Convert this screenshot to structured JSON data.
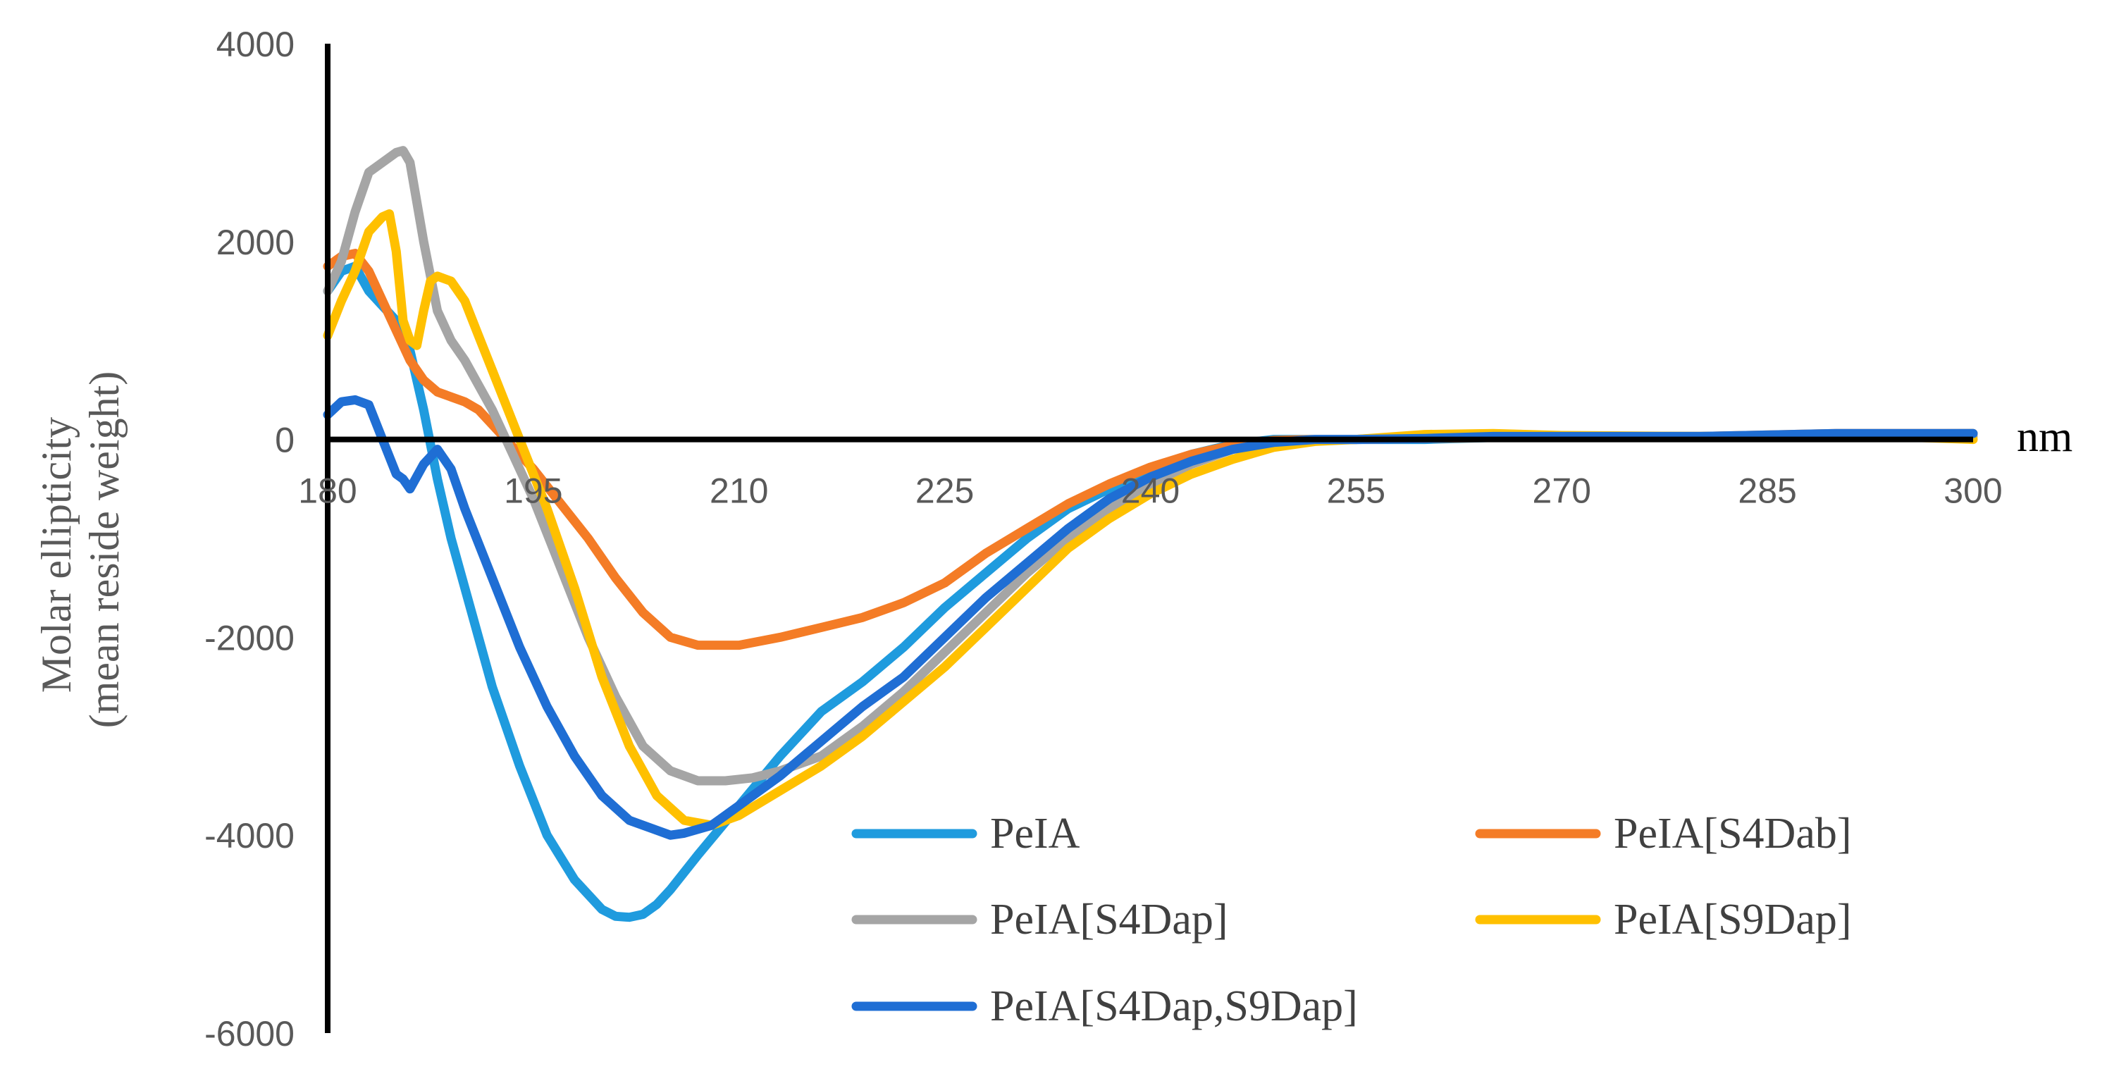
{
  "chart_data": {
    "type": "line",
    "title": "",
    "xlabel": "nm",
    "ylabel_lines": [
      "Molar ellipticity",
      "(mean reside weight)"
    ],
    "xlim": [
      180,
      300
    ],
    "ylim": [
      -6000,
      4000
    ],
    "x_ticks": [
      180,
      195,
      210,
      225,
      240,
      255,
      270,
      285,
      300
    ],
    "y_ticks": [
      4000,
      2000,
      0,
      -2000,
      -4000,
      -6000
    ],
    "grid": false,
    "legend": "bottom-right",
    "series": [
      {
        "name": "PeIA",
        "color": "#1f9bde",
        "points": [
          [
            180,
            1500
          ],
          [
            181,
            1700
          ],
          [
            182,
            1750
          ],
          [
            183,
            1500
          ],
          [
            184,
            1350
          ],
          [
            185,
            1200
          ],
          [
            186,
            900
          ],
          [
            187,
            300
          ],
          [
            188,
            -400
          ],
          [
            189,
            -1000
          ],
          [
            190,
            -1500
          ],
          [
            192,
            -2500
          ],
          [
            194,
            -3300
          ],
          [
            196,
            -4000
          ],
          [
            198,
            -4450
          ],
          [
            200,
            -4750
          ],
          [
            201,
            -4820
          ],
          [
            202,
            -4830
          ],
          [
            203,
            -4800
          ],
          [
            204,
            -4700
          ],
          [
            205,
            -4550
          ],
          [
            207,
            -4200
          ],
          [
            210,
            -3700
          ],
          [
            213,
            -3200
          ],
          [
            216,
            -2750
          ],
          [
            219,
            -2450
          ],
          [
            222,
            -2100
          ],
          [
            225,
            -1700
          ],
          [
            228,
            -1350
          ],
          [
            231,
            -1000
          ],
          [
            234,
            -700
          ],
          [
            237,
            -500
          ],
          [
            240,
            -300
          ],
          [
            243,
            -150
          ],
          [
            246,
            -50
          ],
          [
            249,
            0
          ],
          [
            252,
            0
          ],
          [
            255,
            0
          ],
          [
            260,
            0
          ],
          [
            265,
            20
          ],
          [
            270,
            30
          ],
          [
            280,
            30
          ],
          [
            290,
            50
          ],
          [
            300,
            60
          ]
        ]
      },
      {
        "name": "PeIA[S4Dab]",
        "color": "#f47c26",
        "points": [
          [
            180,
            1750
          ],
          [
            181,
            1850
          ],
          [
            182,
            1880
          ],
          [
            183,
            1700
          ],
          [
            184,
            1400
          ],
          [
            185,
            1100
          ],
          [
            186,
            800
          ],
          [
            187,
            600
          ],
          [
            188,
            480
          ],
          [
            189,
            430
          ],
          [
            190,
            380
          ],
          [
            191,
            300
          ],
          [
            192,
            150
          ],
          [
            193,
            0
          ],
          [
            195,
            -300
          ],
          [
            197,
            -650
          ],
          [
            199,
            -1000
          ],
          [
            201,
            -1400
          ],
          [
            203,
            -1750
          ],
          [
            205,
            -2000
          ],
          [
            207,
            -2080
          ],
          [
            210,
            -2080
          ],
          [
            213,
            -2000
          ],
          [
            216,
            -1900
          ],
          [
            219,
            -1800
          ],
          [
            222,
            -1650
          ],
          [
            225,
            -1450
          ],
          [
            228,
            -1150
          ],
          [
            231,
            -900
          ],
          [
            234,
            -650
          ],
          [
            237,
            -450
          ],
          [
            240,
            -280
          ],
          [
            243,
            -150
          ],
          [
            246,
            -60
          ],
          [
            249,
            -10
          ],
          [
            252,
            0
          ],
          [
            255,
            0
          ],
          [
            260,
            10
          ],
          [
            270,
            30
          ],
          [
            280,
            30
          ],
          [
            290,
            60
          ],
          [
            300,
            60
          ]
        ]
      },
      {
        "name": "PeIA[S4Dap]",
        "color": "#a5a5a5",
        "points": [
          [
            180,
            1500
          ],
          [
            181,
            1800
          ],
          [
            182,
            2300
          ],
          [
            183,
            2700
          ],
          [
            184,
            2800
          ],
          [
            185,
            2900
          ],
          [
            185.5,
            2920
          ],
          [
            186,
            2800
          ],
          [
            187,
            2000
          ],
          [
            188,
            1300
          ],
          [
            189,
            1000
          ],
          [
            190,
            800
          ],
          [
            191,
            550
          ],
          [
            192,
            300
          ],
          [
            193,
            0
          ],
          [
            195,
            -600
          ],
          [
            197,
            -1300
          ],
          [
            199,
            -2000
          ],
          [
            201,
            -2600
          ],
          [
            203,
            -3100
          ],
          [
            205,
            -3350
          ],
          [
            207,
            -3450
          ],
          [
            209,
            -3450
          ],
          [
            211,
            -3420
          ],
          [
            213,
            -3350
          ],
          [
            216,
            -3200
          ],
          [
            219,
            -2900
          ],
          [
            222,
            -2550
          ],
          [
            225,
            -2150
          ],
          [
            228,
            -1750
          ],
          [
            231,
            -1350
          ],
          [
            234,
            -1000
          ],
          [
            237,
            -700
          ],
          [
            240,
            -450
          ],
          [
            243,
            -250
          ],
          [
            246,
            -100
          ],
          [
            249,
            -30
          ],
          [
            252,
            0
          ],
          [
            255,
            0
          ],
          [
            260,
            40
          ],
          [
            265,
            50
          ],
          [
            270,
            30
          ],
          [
            280,
            30
          ],
          [
            290,
            40
          ],
          [
            300,
            30
          ]
        ]
      },
      {
        "name": "PeIA[S9Dap]",
        "color": "#ffc000",
        "points": [
          [
            180,
            1050
          ],
          [
            181,
            1400
          ],
          [
            182,
            1700
          ],
          [
            183,
            2100
          ],
          [
            184,
            2250
          ],
          [
            184.5,
            2280
          ],
          [
            185,
            1900
          ],
          [
            185.5,
            1200
          ],
          [
            186,
            1000
          ],
          [
            186.5,
            950
          ],
          [
            187,
            1300
          ],
          [
            187.5,
            1600
          ],
          [
            188,
            1650
          ],
          [
            189,
            1600
          ],
          [
            190,
            1400
          ],
          [
            191,
            1050
          ],
          [
            192,
            700
          ],
          [
            193,
            350
          ],
          [
            194,
            0
          ],
          [
            196,
            -700
          ],
          [
            198,
            -1500
          ],
          [
            200,
            -2400
          ],
          [
            202,
            -3100
          ],
          [
            204,
            -3600
          ],
          [
            206,
            -3850
          ],
          [
            208,
            -3900
          ],
          [
            210,
            -3800
          ],
          [
            213,
            -3550
          ],
          [
            216,
            -3300
          ],
          [
            219,
            -3000
          ],
          [
            222,
            -2650
          ],
          [
            225,
            -2300
          ],
          [
            228,
            -1900
          ],
          [
            231,
            -1500
          ],
          [
            234,
            -1100
          ],
          [
            237,
            -800
          ],
          [
            240,
            -550
          ],
          [
            243,
            -350
          ],
          [
            246,
            -200
          ],
          [
            249,
            -80
          ],
          [
            252,
            -20
          ],
          [
            255,
            0
          ],
          [
            260,
            50
          ],
          [
            265,
            60
          ],
          [
            270,
            40
          ],
          [
            280,
            30
          ],
          [
            290,
            50
          ],
          [
            300,
            0
          ]
        ]
      },
      {
        "name": "PeIA[S4Dap,S9Dap]",
        "color": "#1f6ed4",
        "points": [
          [
            180,
            250
          ],
          [
            181,
            380
          ],
          [
            182,
            400
          ],
          [
            183,
            350
          ],
          [
            184,
            0
          ],
          [
            185,
            -350
          ],
          [
            185.5,
            -400
          ],
          [
            186,
            -500
          ],
          [
            187,
            -250
          ],
          [
            188,
            -100
          ],
          [
            189,
            -300
          ],
          [
            190,
            -700
          ],
          [
            192,
            -1400
          ],
          [
            194,
            -2100
          ],
          [
            196,
            -2700
          ],
          [
            198,
            -3200
          ],
          [
            200,
            -3600
          ],
          [
            202,
            -3850
          ],
          [
            204,
            -3950
          ],
          [
            205,
            -4000
          ],
          [
            206,
            -3980
          ],
          [
            208,
            -3900
          ],
          [
            210,
            -3700
          ],
          [
            213,
            -3400
          ],
          [
            216,
            -3050
          ],
          [
            219,
            -2700
          ],
          [
            222,
            -2400
          ],
          [
            225,
            -2000
          ],
          [
            228,
            -1600
          ],
          [
            231,
            -1250
          ],
          [
            234,
            -900
          ],
          [
            237,
            -600
          ],
          [
            240,
            -380
          ],
          [
            243,
            -220
          ],
          [
            246,
            -100
          ],
          [
            249,
            -30
          ],
          [
            252,
            0
          ],
          [
            255,
            0
          ],
          [
            260,
            10
          ],
          [
            265,
            30
          ],
          [
            270,
            30
          ],
          [
            280,
            30
          ],
          [
            290,
            60
          ],
          [
            300,
            60
          ]
        ]
      }
    ]
  }
}
